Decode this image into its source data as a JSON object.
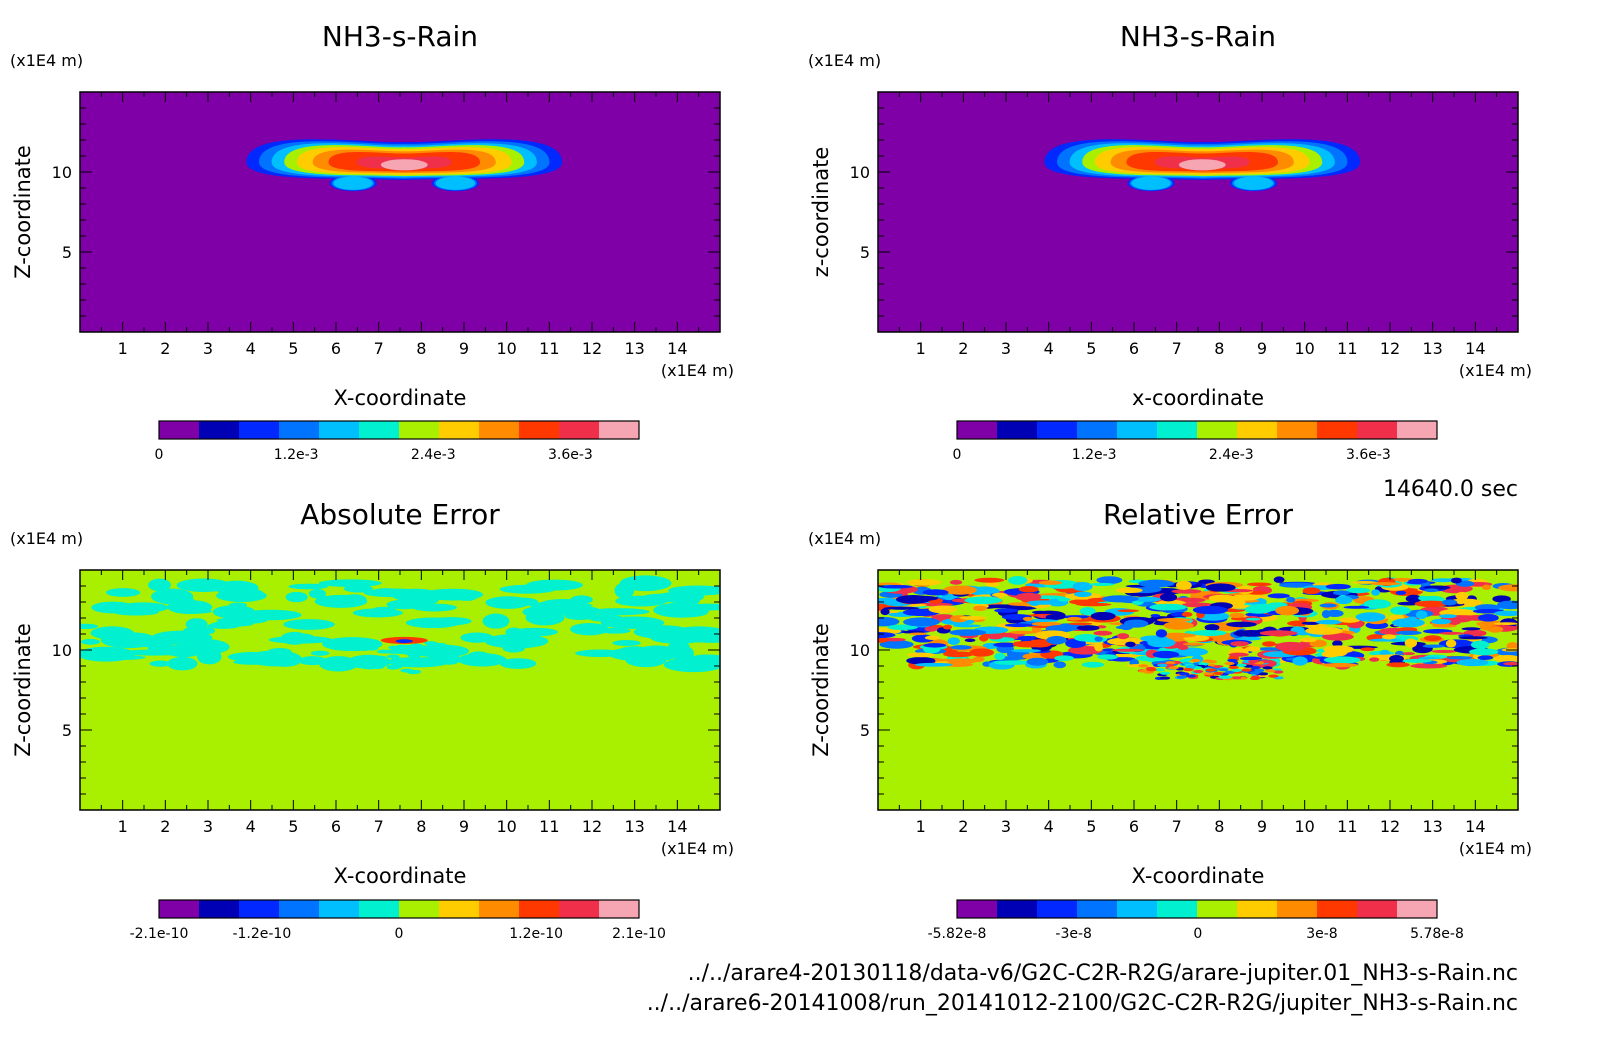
{
  "time_label": "14640.0 sec",
  "files": [
    "../../arare4-20130118/data-v6/G2C-C2R-R2G/arare-jupiter.01_NH3-s-Rain.nc",
    "../../arare6-20141008/run_20141012-2100/G2C-C2R-R2G/jupiter_NH3-s-Rain.nc"
  ],
  "palette": [
    "#8000a8",
    "#0000b4",
    "#0028ff",
    "#0073ff",
    "#00bfff",
    "#00f0d0",
    "#a8f000",
    "#ffcc00",
    "#ff8c00",
    "#ff3800",
    "#f0304a",
    "#f6a6b2"
  ],
  "chart_data": [
    {
      "type": "heatmap",
      "title": "NH3-s-Rain",
      "xlabel": "X-coordinate",
      "ylabel": "Z-coordinate",
      "x_unit": "(x1E4 m)",
      "y_unit": "(x1E4 m)",
      "xlim": [
        0,
        15
      ],
      "ylim": [
        0,
        15
      ],
      "x_ticks": [
        "1",
        "2",
        "3",
        "4",
        "5",
        "6",
        "7",
        "8",
        "9",
        "10",
        "11",
        "12",
        "13",
        "14"
      ],
      "y_ticks": [
        "5",
        "10"
      ],
      "field": "plume",
      "colorbar": {
        "min": 0,
        "max": 0.0042,
        "ticks": [
          "0",
          "1.2e-3",
          "2.4e-3",
          "3.6e-3"
        ]
      }
    },
    {
      "type": "heatmap",
      "title": "NH3-s-Rain",
      "xlabel": "x-coordinate",
      "ylabel": "z-coordinate",
      "x_unit": "(x1E4 m)",
      "y_unit": "(x1E4 m)",
      "xlim": [
        0,
        15
      ],
      "ylim": [
        0,
        15
      ],
      "x_ticks": [
        "1",
        "2",
        "3",
        "4",
        "5",
        "6",
        "7",
        "8",
        "9",
        "10",
        "11",
        "12",
        "13",
        "14"
      ],
      "y_ticks": [
        "5",
        "10"
      ],
      "field": "plume",
      "colorbar": {
        "min": 0,
        "max": 0.0042,
        "ticks": [
          "0",
          "1.2e-3",
          "2.4e-3",
          "3.6e-3"
        ]
      }
    },
    {
      "type": "heatmap",
      "title": "Absolute Error",
      "xlabel": "X-coordinate",
      "ylabel": "Z-coordinate",
      "x_unit": "(x1E4 m)",
      "y_unit": "(x1E4 m)",
      "xlim": [
        0,
        15
      ],
      "ylim": [
        0,
        15
      ],
      "x_ticks": [
        "1",
        "2",
        "3",
        "4",
        "5",
        "6",
        "7",
        "8",
        "9",
        "10",
        "11",
        "12",
        "13",
        "14"
      ],
      "y_ticks": [
        "5",
        "10"
      ],
      "field": "abs_error",
      "colorbar": {
        "min": -2.1e-10,
        "max": 2.1e-10,
        "ticks": [
          "-2.1e-10",
          "-1.2e-10",
          "0",
          "1.2e-10",
          "2.1e-10"
        ]
      }
    },
    {
      "type": "heatmap",
      "title": "Relative Error",
      "xlabel": "X-coordinate",
      "ylabel": "Z-coordinate",
      "x_unit": "(x1E4 m)",
      "y_unit": "(x1E4 m)",
      "xlim": [
        0,
        15
      ],
      "ylim": [
        0,
        15
      ],
      "x_ticks": [
        "1",
        "2",
        "3",
        "4",
        "5",
        "6",
        "7",
        "8",
        "9",
        "10",
        "11",
        "12",
        "13",
        "14"
      ],
      "y_ticks": [
        "5",
        "10"
      ],
      "field": "rel_error",
      "colorbar": {
        "min": -5.82e-08,
        "max": 5.78e-08,
        "ticks": [
          "-5.82e-8",
          "-3e-8",
          "0",
          "3e-8",
          "5.78e-8"
        ]
      }
    }
  ]
}
